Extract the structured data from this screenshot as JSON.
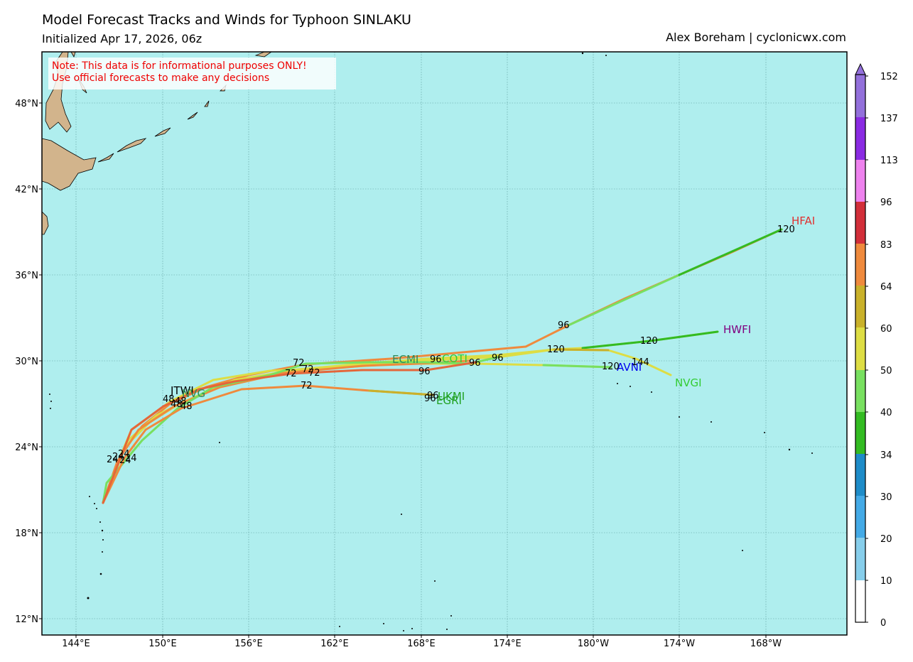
{
  "header": {
    "title": "Model Forecast Tracks and Winds for Typhoon SINLAKU",
    "subtitle": "Initialized Apr 17, 2026, 06z",
    "credit": "Alex Boreham | cyclonicwx.com"
  },
  "note": {
    "line1": "Note: This data is for informational purposes ONLY!",
    "line2": "Use official forecasts to make any decisions"
  },
  "axes": {
    "lon_ticks": [
      "144°E",
      "150°E",
      "156°E",
      "162°E",
      "168°E",
      "174°E",
      "180°W",
      "174°W",
      "168°W"
    ],
    "lat_ticks": [
      "48°N",
      "42°N",
      "36°N",
      "30°N",
      "24°N",
      "18°N",
      "12°N"
    ]
  },
  "colorbar": {
    "ticks": [
      "152",
      "137",
      "113",
      "96",
      "83",
      "64",
      "60",
      "50",
      "40",
      "34",
      "30",
      "20",
      "10",
      "0"
    ],
    "colors": [
      "#9370db",
      "#8a2be2",
      "#ee82ee",
      "#d22f3a",
      "#ef8a3d",
      "#c9b12a",
      "#dddd44",
      "#78e060",
      "#33bb22",
      "#1e8cc8",
      "#44aae6",
      "#87ceeb",
      "#ffffff"
    ]
  },
  "models": [
    {
      "name": "HFAI",
      "color": "#e03030"
    },
    {
      "name": "HWFI",
      "color": "#800080"
    },
    {
      "name": "AVNI",
      "color": "#0000ee"
    },
    {
      "name": "NVGI",
      "color": "#33cc33"
    },
    {
      "name": "ECMI",
      "color": "#2e8b57"
    },
    {
      "name": "COTI",
      "color": "#33cc33"
    },
    {
      "name": "UKMI",
      "color": "#1fa01f"
    },
    {
      "name": "EGRI",
      "color": "#1fa01f"
    },
    {
      "name": "JTWI",
      "color": "#000000"
    },
    {
      "name": "NVG",
      "color": "#2e8b57"
    }
  ],
  "hour_labels": [
    "24",
    "24",
    "24",
    "24",
    "24",
    "48",
    "48",
    "48",
    "48",
    "72",
    "72",
    "72",
    "72",
    "72",
    "96",
    "96",
    "96",
    "96",
    "96",
    "96",
    "96",
    "120",
    "120",
    "120",
    "120",
    "144"
  ]
}
